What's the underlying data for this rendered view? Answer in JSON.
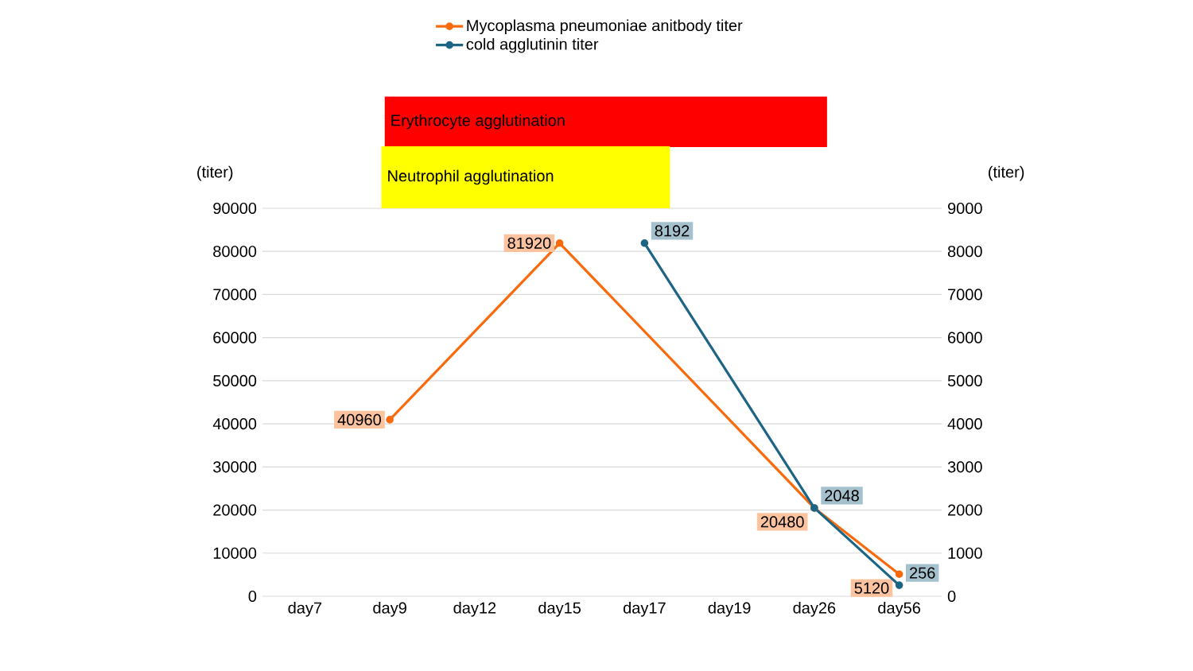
{
  "chart_data": {
    "type": "line",
    "categories": [
      "day7",
      "day9",
      "day12",
      "day15",
      "day17",
      "day19",
      "day26",
      "day56"
    ],
    "series": [
      {
        "name": "Mycoplasma pneumoniae anitbody titer",
        "color": "#f96a0c",
        "values": [
          null,
          40960,
          null,
          81920,
          null,
          null,
          20480,
          5120
        ]
      },
      {
        "name": "cold agglutinin titer",
        "color": "#1d6584",
        "axis": "y2",
        "values": [
          null,
          null,
          null,
          null,
          8192,
          null,
          2048,
          256
        ]
      }
    ],
    "ylabel": "(titer)",
    "y2label": "(titer)",
    "ylim": [
      0,
      90000
    ],
    "yticks": [
      0,
      10000,
      20000,
      30000,
      40000,
      50000,
      60000,
      70000,
      80000,
      90000
    ],
    "y2lim": [
      0,
      9000
    ],
    "y2ticks": [
      0,
      1000,
      2000,
      3000,
      4000,
      5000,
      6000,
      7000,
      8000,
      9000
    ],
    "annotations": [
      "Erythrocyte agglutination",
      "Neutrophil agglutination"
    ],
    "data_labels": true,
    "grid": "y",
    "legend": "top",
    "marker": "circle",
    "line_style": "solid"
  }
}
